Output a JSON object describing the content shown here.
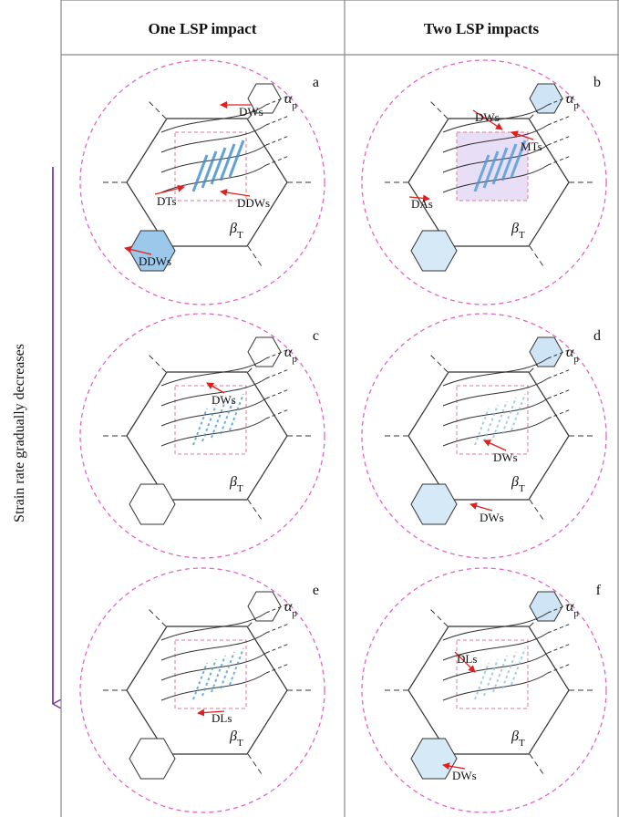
{
  "header": {
    "columns": [
      "One LSP impact",
      "Two LSP impacts"
    ]
  },
  "side_label": "Strain rate gradually decreases",
  "panels": [
    {
      "letter": "a",
      "alpha": {
        "symbol": "α",
        "sub": "p"
      },
      "beta": {
        "symbol": "β",
        "sub": "T"
      },
      "labels": [
        "DWs",
        "DTs",
        "DDWs",
        "DDWs"
      ]
    },
    {
      "letter": "b",
      "alpha": {
        "symbol": "α",
        "sub": "p"
      },
      "beta": {
        "symbol": "β",
        "sub": "T"
      },
      "labels": [
        "DWs",
        "MTs",
        "DAs"
      ]
    },
    {
      "letter": "c",
      "alpha": {
        "symbol": "α",
        "sub": "p"
      },
      "beta": {
        "symbol": "β",
        "sub": "T"
      },
      "labels": [
        "DWs"
      ]
    },
    {
      "letter": "d",
      "alpha": {
        "symbol": "α",
        "sub": "p"
      },
      "beta": {
        "symbol": "β",
        "sub": "T"
      },
      "labels": [
        "DWs",
        "DWs"
      ]
    },
    {
      "letter": "e",
      "alpha": {
        "symbol": "α",
        "sub": "p"
      },
      "beta": {
        "symbol": "β",
        "sub": "T"
      },
      "labels": [
        "DLs"
      ]
    },
    {
      "letter": "f",
      "alpha": {
        "symbol": "α",
        "sub": "p"
      },
      "beta": {
        "symbol": "β",
        "sub": "T"
      },
      "labels": [
        "DLs",
        "DWs"
      ]
    }
  ]
}
